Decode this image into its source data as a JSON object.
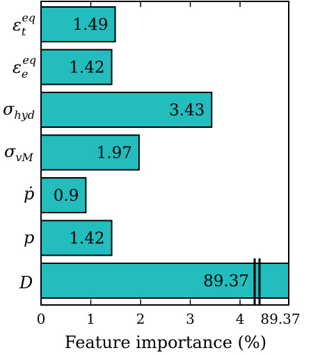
{
  "chart_data": {
    "type": "bar",
    "orientation": "horizontal",
    "categories": [
      "ε_t^eq",
      "ε_e^eq",
      "σ_hyd",
      "σ_vM",
      "ṗ",
      "p",
      "D"
    ],
    "values": [
      1.49,
      1.42,
      3.43,
      1.97,
      0.9,
      1.42,
      89.37
    ],
    "value_labels": [
      "1.49",
      "1.42",
      "3.43",
      "1.97",
      "0.9",
      "1.42",
      "89.37"
    ],
    "xlabel": "Feature importance (%)",
    "xlim": [
      0,
      4.5
    ],
    "x_ticks": [
      "0",
      "1",
      "2",
      "3",
      "4",
      "89.37"
    ],
    "axis_break": "between 4 and 89.37",
    "bar_color": "#23bdbd",
    "grid": false,
    "title": ""
  }
}
